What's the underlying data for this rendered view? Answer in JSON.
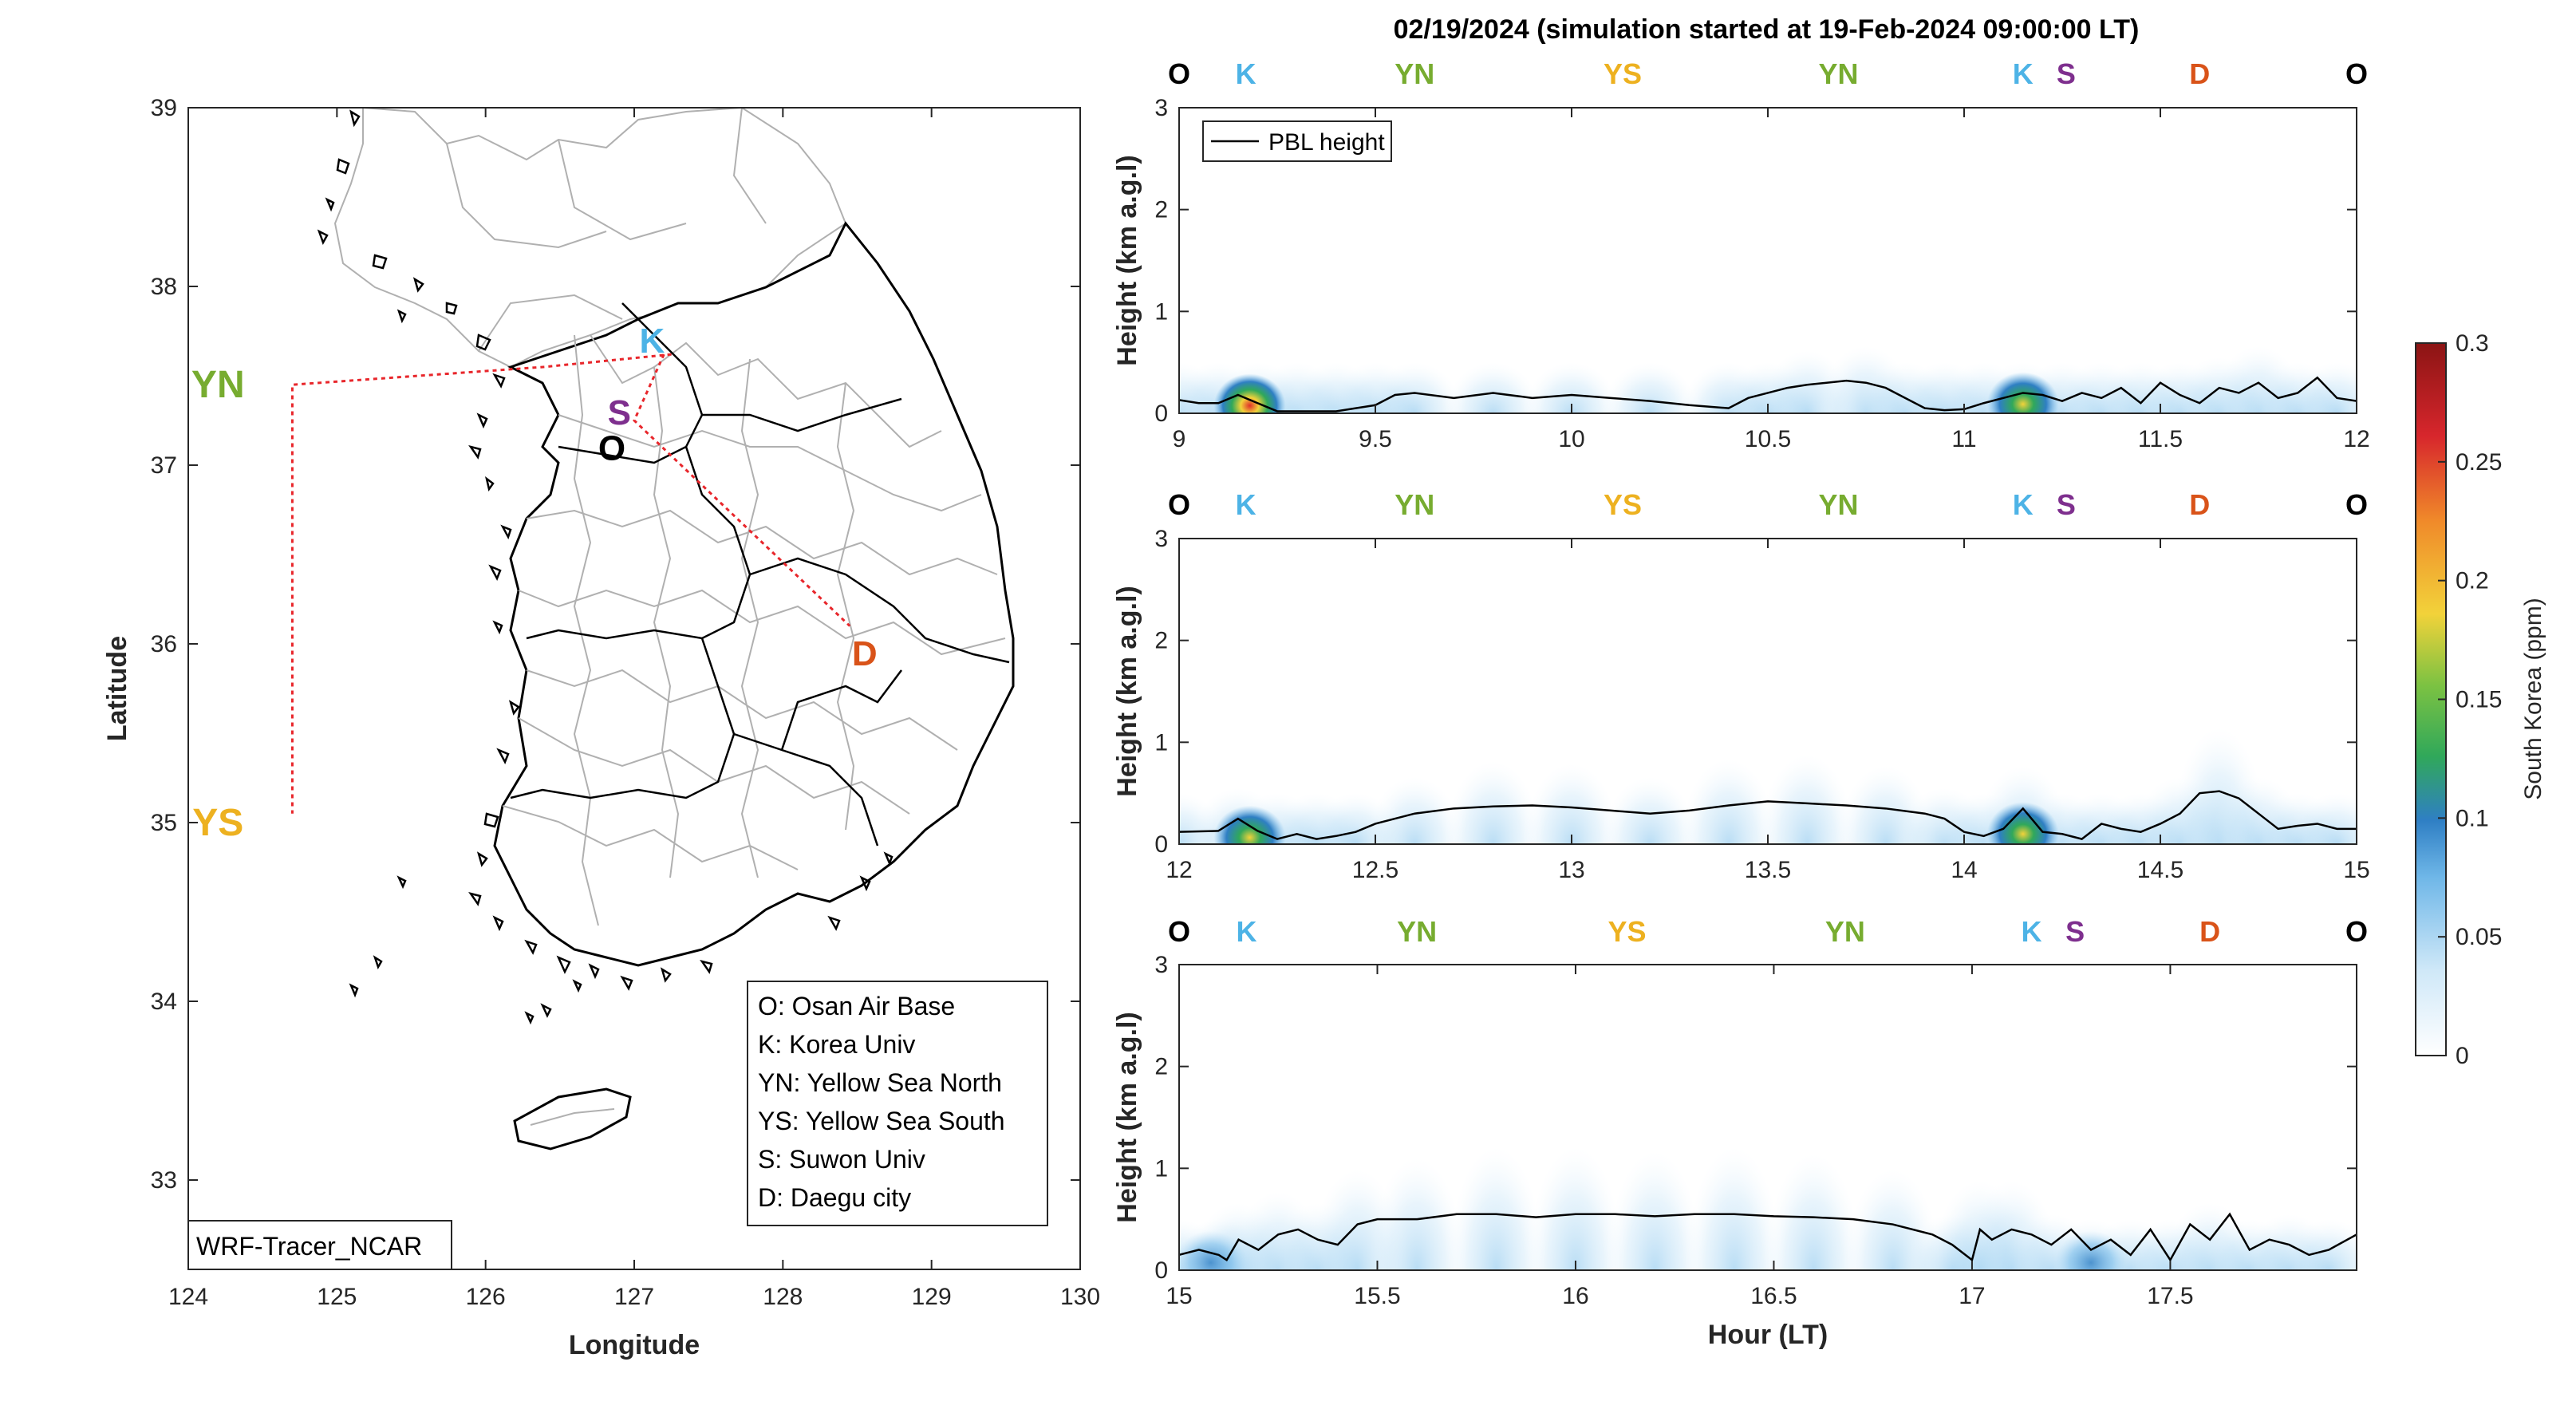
{
  "title": "02/19/2024 (simulation started at 19-Feb-2024 09:00:00 LT)",
  "colors": {
    "O": "#000000",
    "K": "#4db3e6",
    "YN": "#77ac30",
    "YS": "#edb120",
    "S": "#7e2f8e",
    "D": "#d95319",
    "route": "#e8262b",
    "pbl": "#000000"
  },
  "map": {
    "xlabel": "Longitude",
    "ylabel": "Latitude",
    "xlim": [
      124,
      130
    ],
    "ylim": [
      32.5,
      39
    ],
    "xticks": [
      "124",
      "125",
      "126",
      "127",
      "128",
      "129",
      "130"
    ],
    "yticks": [
      "33",
      "34",
      "35",
      "36",
      "37",
      "38",
      "39"
    ],
    "model_label": "WRF-Tracer_NCAR",
    "sites": [
      {
        "code": "O",
        "lon": 126.85,
        "lat": 37.1,
        "color": "#000000"
      },
      {
        "code": "K",
        "lon": 127.12,
        "lat": 37.7,
        "color": "#4db3e6"
      },
      {
        "code": "YN",
        "lon": 124.2,
        "lat": 37.45,
        "color": "#77ac30"
      },
      {
        "code": "YS",
        "lon": 124.2,
        "lat": 35.0,
        "color": "#edb120"
      },
      {
        "code": "S",
        "lon": 126.9,
        "lat": 37.3,
        "color": "#7e2f8e"
      },
      {
        "code": "D",
        "lon": 128.55,
        "lat": 35.95,
        "color": "#d95319"
      }
    ],
    "route": [
      [
        127.25,
        37.62
      ],
      [
        126.4,
        37.55
      ],
      [
        124.7,
        37.45
      ],
      [
        124.7,
        35.05
      ]
    ],
    "route2": [
      [
        127.2,
        37.62
      ],
      [
        127.0,
        37.25
      ],
      [
        128.45,
        36.1
      ]
    ],
    "legend": [
      "O: Osan Air Base",
      "K: Korea Univ",
      "YN: Yellow Sea North",
      "YS: Yellow Sea South",
      "S: Suwon Univ",
      "D: Daegu city"
    ]
  },
  "chart_data": [
    {
      "type": "heatmap",
      "xlabel": "",
      "ylabel": "Height (km a.g.l)",
      "xlim": [
        9,
        12
      ],
      "ylim": [
        0,
        3
      ],
      "xticks": [
        "9",
        "9.5",
        "10",
        "10.5",
        "11",
        "11.5",
        "12"
      ],
      "yticks": [
        "0",
        "1",
        "2",
        "3"
      ],
      "legend": "PBL height",
      "site_markers": [
        {
          "code": "O",
          "x": 9.0
        },
        {
          "code": "K",
          "x": 9.17
        },
        {
          "code": "YN",
          "x": 9.6
        },
        {
          "code": "YS",
          "x": 10.13
        },
        {
          "code": "YN",
          "x": 10.68
        },
        {
          "code": "K",
          "x": 11.15
        },
        {
          "code": "S",
          "x": 11.26
        },
        {
          "code": "D",
          "x": 11.6
        },
        {
          "code": "O",
          "x": 12.0
        }
      ],
      "pbl": {
        "x": [
          9.0,
          9.05,
          9.1,
          9.15,
          9.2,
          9.25,
          9.3,
          9.35,
          9.4,
          9.45,
          9.5,
          9.55,
          9.6,
          9.7,
          9.8,
          9.9,
          10.0,
          10.1,
          10.2,
          10.3,
          10.4,
          10.45,
          10.5,
          10.55,
          10.6,
          10.7,
          10.75,
          10.8,
          10.85,
          10.9,
          10.95,
          11.0,
          11.05,
          11.1,
          11.15,
          11.2,
          11.25,
          11.3,
          11.35,
          11.4,
          11.45,
          11.5,
          11.55,
          11.6,
          11.65,
          11.7,
          11.75,
          11.8,
          11.85,
          11.9,
          11.95,
          12.0
        ],
        "y": [
          0.13,
          0.1,
          0.1,
          0.18,
          0.1,
          0.02,
          0.02,
          0.02,
          0.02,
          0.05,
          0.08,
          0.18,
          0.2,
          0.15,
          0.2,
          0.15,
          0.18,
          0.15,
          0.12,
          0.08,
          0.05,
          0.15,
          0.2,
          0.25,
          0.28,
          0.32,
          0.3,
          0.25,
          0.15,
          0.05,
          0.03,
          0.04,
          0.1,
          0.15,
          0.2,
          0.18,
          0.12,
          0.2,
          0.15,
          0.25,
          0.1,
          0.3,
          0.18,
          0.1,
          0.25,
          0.2,
          0.3,
          0.15,
          0.2,
          0.35,
          0.15,
          0.12
        ]
      },
      "conc_ppm": [
        {
          "x": 9.18,
          "y": 0.15,
          "value": 0.2
        },
        {
          "x": 11.15,
          "y": 0.18,
          "value": 0.15
        }
      ]
    },
    {
      "type": "heatmap",
      "xlabel": "",
      "ylabel": "Height (km a.g.l)",
      "xlim": [
        12,
        15
      ],
      "ylim": [
        0,
        3
      ],
      "xticks": [
        "12",
        "12.5",
        "13",
        "13.5",
        "14",
        "14.5",
        "15"
      ],
      "yticks": [
        "0",
        "1",
        "2",
        "3"
      ],
      "site_markers": [
        {
          "code": "O",
          "x": 12.0
        },
        {
          "code": "K",
          "x": 12.17
        },
        {
          "code": "YN",
          "x": 12.6
        },
        {
          "code": "YS",
          "x": 13.13
        },
        {
          "code": "YN",
          "x": 13.68
        },
        {
          "code": "K",
          "x": 14.15
        },
        {
          "code": "S",
          "x": 14.26
        },
        {
          "code": "D",
          "x": 14.6
        },
        {
          "code": "O",
          "x": 15.0
        }
      ],
      "pbl": {
        "x": [
          12.0,
          12.1,
          12.15,
          12.2,
          12.25,
          12.3,
          12.35,
          12.4,
          12.45,
          12.5,
          12.6,
          12.7,
          12.8,
          12.9,
          13.0,
          13.1,
          13.2,
          13.3,
          13.4,
          13.5,
          13.6,
          13.7,
          13.8,
          13.9,
          13.95,
          14.0,
          14.05,
          14.1,
          14.15,
          14.2,
          14.25,
          14.3,
          14.35,
          14.4,
          14.45,
          14.5,
          14.55,
          14.6,
          14.65,
          14.7,
          14.75,
          14.8,
          14.85,
          14.9,
          14.95,
          15.0
        ],
        "y": [
          0.12,
          0.13,
          0.25,
          0.13,
          0.05,
          0.1,
          0.05,
          0.08,
          0.12,
          0.2,
          0.3,
          0.35,
          0.37,
          0.38,
          0.36,
          0.33,
          0.3,
          0.33,
          0.38,
          0.42,
          0.4,
          0.38,
          0.35,
          0.3,
          0.25,
          0.12,
          0.08,
          0.15,
          0.35,
          0.12,
          0.1,
          0.05,
          0.2,
          0.15,
          0.12,
          0.2,
          0.3,
          0.5,
          0.52,
          0.45,
          0.3,
          0.15,
          0.18,
          0.2,
          0.15,
          0.15
        ]
      },
      "conc_ppm": [
        {
          "x": 12.18,
          "y": 0.13,
          "value": 0.18
        },
        {
          "x": 14.15,
          "y": 0.2,
          "value": 0.18
        }
      ]
    },
    {
      "type": "heatmap",
      "xlabel": "Hour (LT)",
      "ylabel": "Height (km a.g.l)",
      "xlim": [
        15,
        17.97
      ],
      "ylim": [
        0,
        3
      ],
      "xticks": [
        "15",
        "15.5",
        "16",
        "16.5",
        "17",
        "17.5"
      ],
      "yticks": [
        "0",
        "1",
        "2",
        "3"
      ],
      "site_markers": [
        {
          "code": "O",
          "x": 15.0
        },
        {
          "code": "K",
          "x": 15.17
        },
        {
          "code": "YN",
          "x": 15.6
        },
        {
          "code": "YS",
          "x": 16.13
        },
        {
          "code": "YN",
          "x": 16.68
        },
        {
          "code": "K",
          "x": 17.15
        },
        {
          "code": "S",
          "x": 17.26
        },
        {
          "code": "D",
          "x": 17.6
        },
        {
          "code": "O",
          "x": 17.97
        }
      ],
      "pbl": {
        "x": [
          15.0,
          15.05,
          15.1,
          15.12,
          15.15,
          15.2,
          15.25,
          15.3,
          15.35,
          15.4,
          15.45,
          15.5,
          15.6,
          15.7,
          15.8,
          15.9,
          16.0,
          16.1,
          16.2,
          16.3,
          16.4,
          16.5,
          16.6,
          16.7,
          16.8,
          16.9,
          16.95,
          17.0,
          17.02,
          17.05,
          17.1,
          17.15,
          17.2,
          17.25,
          17.3,
          17.35,
          17.4,
          17.45,
          17.5,
          17.55,
          17.6,
          17.65,
          17.7,
          17.75,
          17.8,
          17.85,
          17.9,
          17.97
        ],
        "y": [
          0.15,
          0.2,
          0.15,
          0.1,
          0.3,
          0.2,
          0.35,
          0.4,
          0.3,
          0.25,
          0.45,
          0.5,
          0.5,
          0.55,
          0.55,
          0.52,
          0.55,
          0.55,
          0.53,
          0.55,
          0.55,
          0.53,
          0.52,
          0.5,
          0.45,
          0.35,
          0.25,
          0.1,
          0.4,
          0.3,
          0.4,
          0.35,
          0.25,
          0.4,
          0.2,
          0.3,
          0.15,
          0.4,
          0.1,
          0.45,
          0.3,
          0.55,
          0.2,
          0.3,
          0.25,
          0.15,
          0.2,
          0.35
        ]
      },
      "conc_ppm": [
        {
          "x": 15.08,
          "y": 0.15,
          "value": 0.12
        },
        {
          "x": 17.3,
          "y": 0.15,
          "value": 0.08
        }
      ]
    }
  ],
  "colorbar": {
    "label": "South Korea (ppm)",
    "ticks": [
      "0",
      "0.05",
      "0.1",
      "0.15",
      "0.2",
      "0.25",
      "0.3"
    ],
    "range": [
      0,
      0.3
    ]
  }
}
